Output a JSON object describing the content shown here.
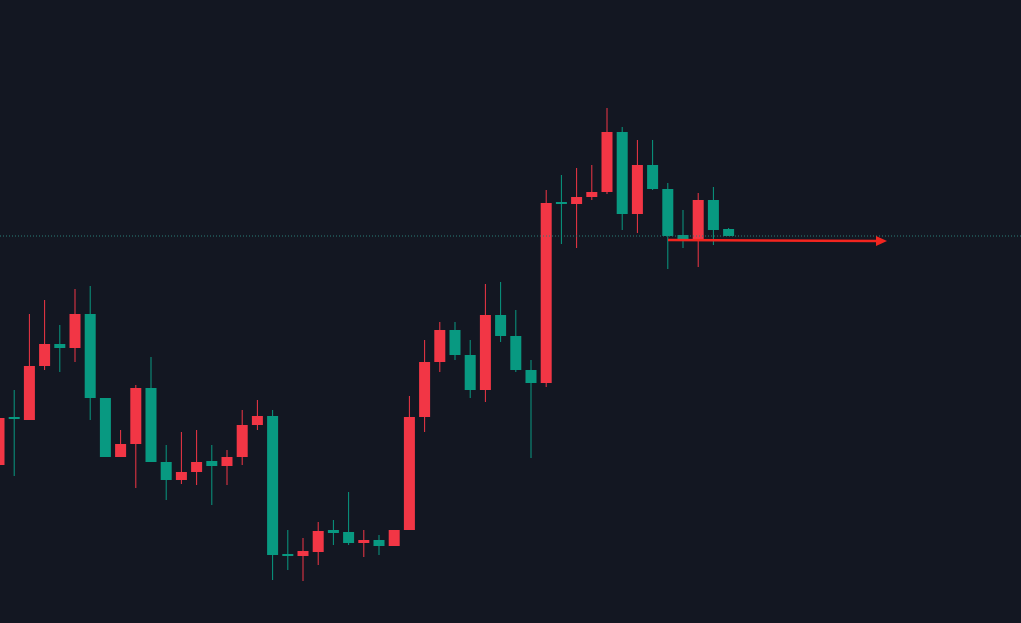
{
  "chart_data": {
    "type": "candlestick",
    "up_color": "#089981",
    "down_color": "#f23645",
    "ylim": [
      0,
      623
    ],
    "price_line": 387,
    "price_line_color": "#2a7f78",
    "open": [
      205,
      204,
      257,
      279,
      275,
      309,
      225,
      166,
      179,
      235,
      161,
      143,
      151,
      161,
      157,
      166,
      198,
      207,
      68,
      67,
      72,
      92,
      90,
      80,
      83,
      77,
      93,
      206,
      261,
      293,
      268,
      233,
      308,
      287,
      253,
      240,
      420,
      419,
      426,
      431,
      491,
      409,
      458,
      434,
      387,
      383,
      423,
      393,
      387
    ],
    "high": [
      213,
      233,
      309,
      323,
      298,
      334,
      337,
      225,
      193,
      238,
      266,
      178,
      191,
      193,
      178,
      173,
      213,
      223,
      213,
      93,
      85,
      101,
      103,
      131,
      93,
      88,
      93,
      227,
      283,
      301,
      301,
      283,
      339,
      341,
      313,
      263,
      433,
      448,
      455,
      458,
      515,
      496,
      483,
      483,
      440,
      413,
      430,
      436,
      395
    ],
    "low": [
      153,
      147,
      203,
      253,
      251,
      261,
      203,
      166,
      166,
      135,
      161,
      123,
      139,
      138,
      118,
      138,
      158,
      193,
      43,
      53,
      42,
      58,
      78,
      78,
      66,
      68,
      77,
      93,
      191,
      251,
      263,
      225,
      221,
      281,
      251,
      165,
      236,
      379,
      375,
      423,
      429,
      393,
      390,
      433,
      354,
      375,
      356,
      378,
      387
    ],
    "close": [
      158,
      206,
      203,
      257,
      279,
      275,
      309,
      225,
      166,
      179,
      235,
      161,
      143,
      151,
      162,
      157,
      166,
      198,
      207,
      69,
      67,
      71,
      93,
      91,
      80,
      83,
      77,
      93,
      206,
      261,
      293,
      268,
      233,
      308,
      287,
      253,
      240,
      421,
      419,
      426,
      431,
      491,
      409,
      458,
      434,
      388,
      383,
      423,
      394
    ]
  }
}
